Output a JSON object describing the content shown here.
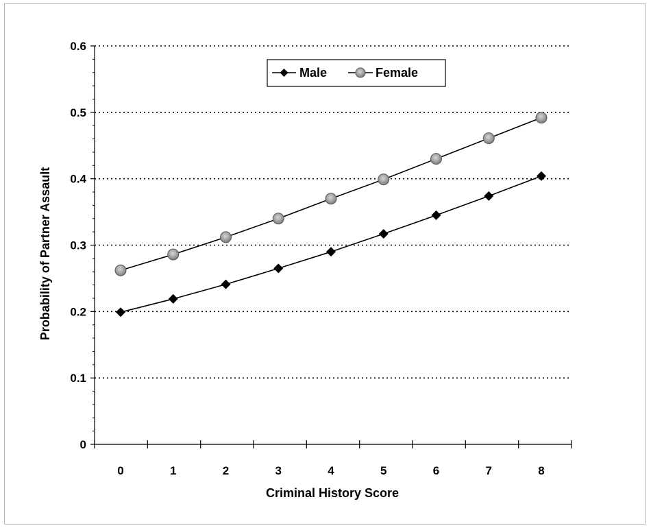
{
  "chart_data": {
    "type": "line",
    "title": "",
    "xlabel": "Criminal History Score",
    "ylabel": "Probability of Partner Assault",
    "categories": [
      "0",
      "1",
      "2",
      "3",
      "4",
      "5",
      "6",
      "7",
      "8"
    ],
    "x": [
      0,
      1,
      2,
      3,
      4,
      5,
      6,
      7,
      8
    ],
    "yticks": [
      "0",
      "0.1",
      "0.2",
      "0.3",
      "0.4",
      "0.5",
      "0.6"
    ],
    "ylim": [
      0,
      0.6
    ],
    "grid": "horizontal dotted",
    "legend_position": "top-center",
    "series": [
      {
        "name": "Male",
        "marker": "diamond",
        "values": [
          0.199,
          0.219,
          0.241,
          0.265,
          0.29,
          0.317,
          0.345,
          0.374,
          0.404
        ]
      },
      {
        "name": "Female",
        "marker": "circle",
        "values": [
          0.262,
          0.286,
          0.312,
          0.34,
          0.37,
          0.399,
          0.43,
          0.461,
          0.492
        ]
      }
    ],
    "colors": {
      "line": "#000000",
      "male_marker": "#000000",
      "female_marker": "#9a9a9a",
      "grid": "#000000"
    }
  }
}
